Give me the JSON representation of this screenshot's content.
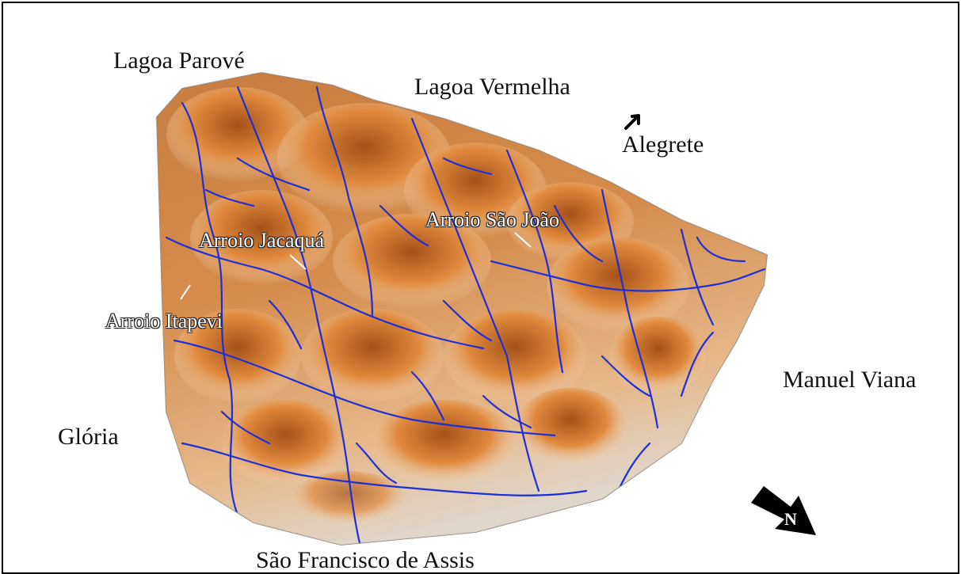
{
  "map": {
    "places": {
      "lagoa_parove": "Lagoa Parové",
      "lagoa_vermelha": "Lagoa Vermelha",
      "alegrete": "Alegrete",
      "manuel_viana": "Manuel Viana",
      "gloria": "Glória",
      "sao_francisco": "São Francisco de Assis"
    },
    "rivers": {
      "jacaqua": "Arroio Jacaquá",
      "sao_joao": "Arroio São João",
      "itapevi": "Arroio Itapevi"
    },
    "north": "N",
    "colors": {
      "relief_high": "#b8611c",
      "relief_mid": "#e08a3e",
      "relief_low": "#f3d2ae",
      "base": "#bdb6ad",
      "drainage": "#1d2fd6"
    }
  }
}
